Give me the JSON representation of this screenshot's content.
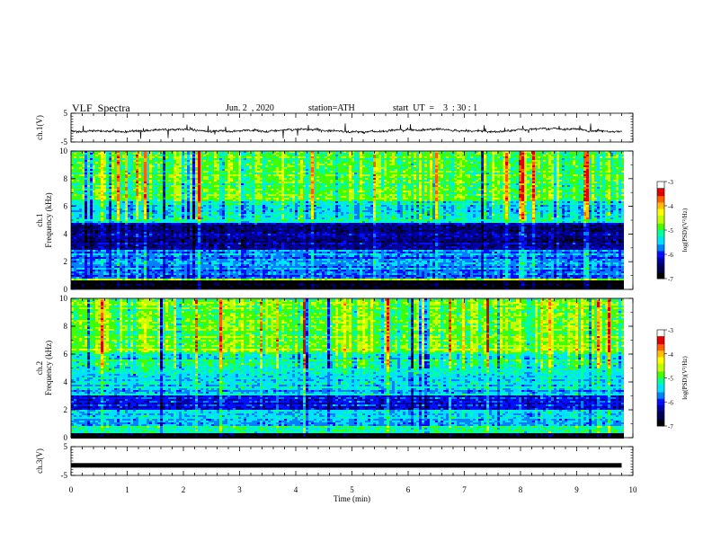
{
  "header": {
    "title": "VLF  Spectra",
    "date": "Jun. 2  , 2020",
    "station": "station=ATH",
    "start": "start  UT  =    3  : 30 : 1"
  },
  "chart_data": [
    {
      "type": "line",
      "panel": "ch1-waveform",
      "ylabel": "ch.1(V)",
      "ylim": [
        -5,
        5
      ],
      "yticks": [
        "5",
        "-5"
      ],
      "x_range_min": [
        0,
        9.8
      ],
      "baseline_v": -1,
      "color": "#000000"
    },
    {
      "type": "heatmap",
      "panel": "ch1-spectrogram",
      "ylabel": "ch.1\nFrequency  (kHz)",
      "ylim": [
        0,
        10
      ],
      "yticks": [
        "0",
        "2",
        "4",
        "6",
        "8",
        "10"
      ],
      "x_range_min": [
        0,
        9.8
      ],
      "bands": [
        {
          "from_khz": 0,
          "to_khz": 0.6,
          "level": -6.9
        },
        {
          "from_khz": 0.6,
          "to_khz": 0.8,
          "level": -4.3
        },
        {
          "from_khz": 0.8,
          "to_khz": 2.0,
          "level": -5.6
        },
        {
          "from_khz": 2.0,
          "to_khz": 2.8,
          "level": -5.5
        },
        {
          "from_khz": 2.8,
          "to_khz": 4.8,
          "level": -6.3
        },
        {
          "from_khz": 4.8,
          "to_khz": 6.3,
          "level": -5.2
        },
        {
          "from_khz": 6.3,
          "to_khz": 10,
          "level": -4.7
        }
      ],
      "colorbar": {
        "label": "log(PSD)(V²/Hz)",
        "range": [
          -7,
          -3
        ],
        "ticks": [
          "-3",
          "-4",
          "-5",
          "-6",
          "-7"
        ]
      }
    },
    {
      "type": "heatmap",
      "panel": "ch2-spectrogram",
      "ylabel": "ch.2\nFrequency  (kHz)",
      "ylim": [
        0,
        10
      ],
      "yticks": [
        "0",
        "2",
        "4",
        "6",
        "8",
        "10"
      ],
      "x_range_min": [
        0,
        9.8
      ],
      "bands": [
        {
          "from_khz": 0,
          "to_khz": 0.3,
          "level": -6.9
        },
        {
          "from_khz": 0.3,
          "to_khz": 0.8,
          "level": -5.0
        },
        {
          "from_khz": 0.8,
          "to_khz": 2.0,
          "level": -5.4
        },
        {
          "from_khz": 2.0,
          "to_khz": 3.0,
          "level": -6.0
        },
        {
          "from_khz": 3.0,
          "to_khz": 4.5,
          "level": -5.3
        },
        {
          "from_khz": 4.5,
          "to_khz": 6.0,
          "level": -5.0
        },
        {
          "from_khz": 6.0,
          "to_khz": 10,
          "level": -4.6
        }
      ],
      "colorbar": {
        "label": "log(PSD)(V²/Hz)",
        "range": [
          -7,
          -3
        ],
        "ticks": [
          "-3",
          "-4",
          "-5",
          "-6",
          "-7"
        ]
      }
    },
    {
      "type": "line",
      "panel": "ch3-waveform",
      "ylabel": "ch.3(V)",
      "ylim": [
        -5,
        5
      ],
      "yticks": [
        "5",
        "-5"
      ],
      "x_range_min": [
        0,
        9.8
      ],
      "baseline_v": -1.5,
      "color": "#000000"
    }
  ],
  "x_axis": {
    "label": "Time  (min)",
    "xlim": [
      0,
      10
    ],
    "ticks": [
      "0",
      "1",
      "2",
      "3",
      "4",
      "5",
      "6",
      "7",
      "8",
      "9",
      "10"
    ]
  },
  "colormap": [
    "#000000",
    "#000050",
    "#0000a0",
    "#0010ff",
    "#0080ff",
    "#00e0ff",
    "#00ffa0",
    "#40ff00",
    "#c0ff00",
    "#ffff00",
    "#ffc000",
    "#ff6000",
    "#e00000",
    "#ffffff"
  ]
}
